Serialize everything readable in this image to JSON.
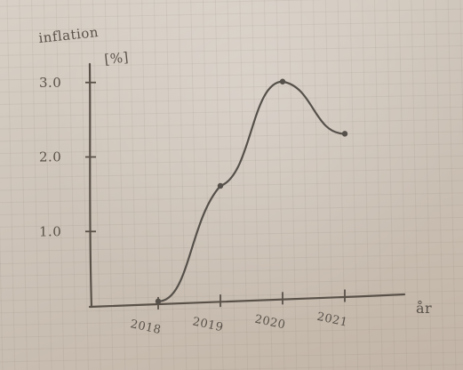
{
  "chart_data": {
    "type": "line",
    "title": "",
    "ylabel": "inflation",
    "yunit": "[%]",
    "xlabel": "år",
    "categories": [
      "2018",
      "2019",
      "2020",
      "2021"
    ],
    "values": [
      0.5,
      16,
      30,
      23
    ],
    "ylim": [
      0,
      32
    ],
    "yticks": [
      10,
      20,
      30
    ],
    "ytick_labels": [
      "1.0",
      "2.0",
      "3.0"
    ],
    "grid": true,
    "line_color": "#55504a",
    "axis_color": "#5a5249"
  }
}
